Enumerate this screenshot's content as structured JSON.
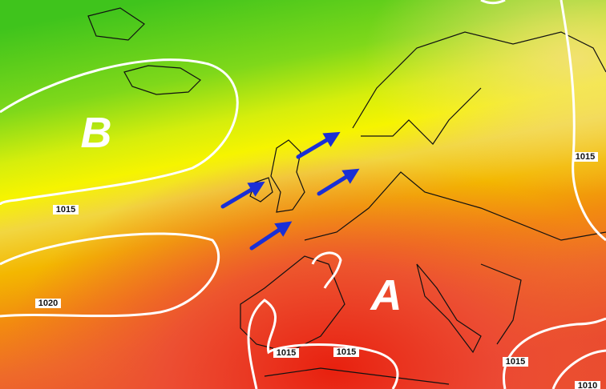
{
  "pressure_centers": [
    {
      "label": "B"
    },
    {
      "label": "A"
    }
  ],
  "isobar_labels": [
    "1015",
    "1020",
    "1015",
    "1015",
    "1015",
    "1015",
    "1010"
  ]
}
